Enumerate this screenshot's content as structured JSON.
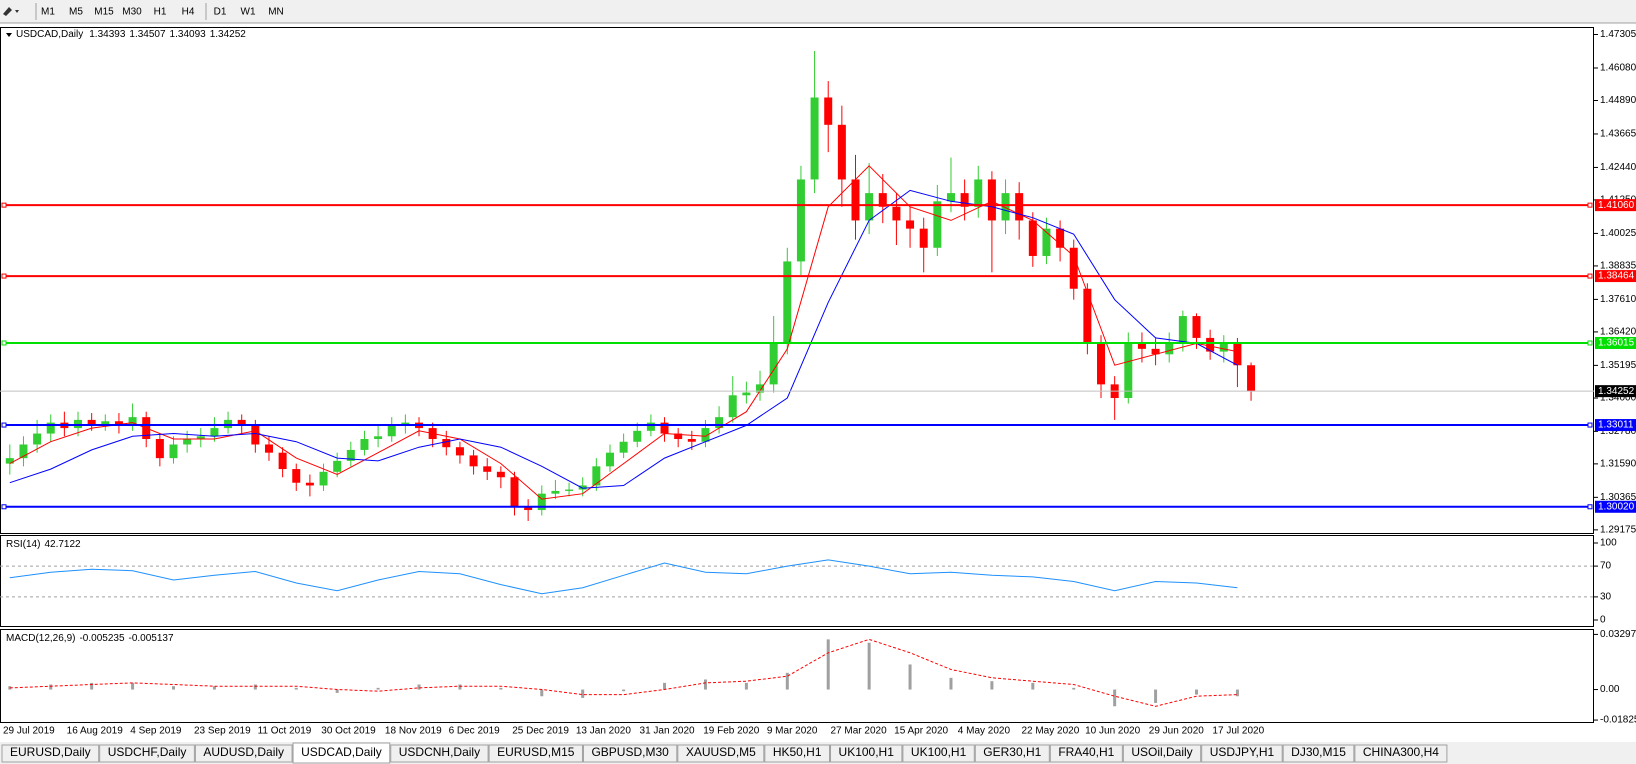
{
  "toolbar": {
    "timeframes": [
      "M1",
      "M5",
      "M15",
      "M30",
      "H1",
      "H4",
      "D1",
      "W1",
      "MN"
    ]
  },
  "chart_data": [
    {
      "type": "candlestick",
      "title": "USDCAD,Daily",
      "ohlc": [
        1.34393,
        1.34507,
        1.34093,
        1.34252
      ],
      "date_labels": [
        "29 Jul 2019",
        "16 Aug 2019",
        "4 Sep 2019",
        "23 Sep 2019",
        "11 Oct 2019",
        "30 Oct 2019",
        "18 Nov 2019",
        "6 Dec 2019",
        "25 Dec 2019",
        "13 Jan 2020",
        "31 Jan 2020",
        "19 Feb 2020",
        "9 Mar 2020",
        "27 Mar 2020",
        "15 Apr 2020",
        "4 May 2020",
        "22 May 2020",
        "10 Jun 2020",
        "29 Jun 2020",
        "17 Jul 2020"
      ],
      "open": [
        1.316,
        1.318,
        1.323,
        1.327,
        1.331,
        1.329,
        1.332,
        1.3305,
        1.3315,
        1.33,
        1.333,
        1.325,
        1.318,
        1.323,
        1.325,
        1.326,
        1.329,
        1.332,
        1.33,
        1.323,
        1.32,
        1.314,
        1.309,
        1.308,
        1.313,
        1.317,
        1.321,
        1.325,
        1.326,
        1.33,
        1.331,
        1.329,
        1.325,
        1.322,
        1.319,
        1.315,
        1.313,
        1.311,
        1.3,
        1.299,
        1.305,
        1.306,
        1.3065,
        1.308,
        1.315,
        1.32,
        1.324,
        1.328,
        1.331,
        1.327,
        1.325,
        1.324,
        1.329,
        1.333,
        1.341,
        1.342,
        1.345,
        1.36,
        1.39,
        1.42,
        1.45,
        1.44,
        1.42,
        1.405,
        1.415,
        1.41,
        1.405,
        1.402,
        1.395,
        1.412,
        1.415,
        1.41,
        1.42,
        1.405,
        1.415,
        1.405,
        1.392,
        1.402,
        1.395,
        1.38,
        1.36,
        1.345,
        1.34,
        1.36,
        1.358,
        1.356,
        1.36,
        1.37,
        1.362,
        1.357,
        1.36,
        1.352
      ],
      "high": [
        1.323,
        1.326,
        1.332,
        1.334,
        1.335,
        1.335,
        1.3345,
        1.334,
        1.3345,
        1.338,
        1.335,
        1.327,
        1.326,
        1.328,
        1.329,
        1.333,
        1.335,
        1.334,
        1.332,
        1.326,
        1.322,
        1.316,
        1.312,
        1.316,
        1.32,
        1.324,
        1.328,
        1.33,
        1.333,
        1.334,
        1.333,
        1.331,
        1.328,
        1.324,
        1.321,
        1.318,
        1.315,
        1.313,
        1.303,
        1.308,
        1.31,
        1.309,
        1.311,
        1.318,
        1.323,
        1.327,
        1.331,
        1.334,
        1.333,
        1.329,
        1.328,
        1.332,
        1.337,
        1.348,
        1.346,
        1.35,
        1.37,
        1.395,
        1.425,
        1.467,
        1.456,
        1.447,
        1.429,
        1.426,
        1.422,
        1.415,
        1.41,
        1.406,
        1.418,
        1.428,
        1.42,
        1.425,
        1.423,
        1.42,
        1.419,
        1.408,
        1.406,
        1.405,
        1.398,
        1.382,
        1.363,
        1.348,
        1.364,
        1.364,
        1.362,
        1.364,
        1.372,
        1.371,
        1.365,
        1.363,
        1.362,
        1.353
      ],
      "low": [
        1.312,
        1.315,
        1.32,
        1.324,
        1.326,
        1.326,
        1.328,
        1.328,
        1.327,
        1.328,
        1.322,
        1.315,
        1.316,
        1.32,
        1.322,
        1.324,
        1.327,
        1.327,
        1.32,
        1.317,
        1.311,
        1.306,
        1.304,
        1.306,
        1.311,
        1.315,
        1.319,
        1.322,
        1.324,
        1.327,
        1.326,
        1.322,
        1.319,
        1.316,
        1.312,
        1.31,
        1.307,
        1.297,
        1.295,
        1.297,
        1.303,
        1.304,
        1.304,
        1.306,
        1.313,
        1.318,
        1.322,
        1.326,
        1.324,
        1.322,
        1.321,
        1.322,
        1.327,
        1.331,
        1.338,
        1.339,
        1.342,
        1.356,
        1.385,
        1.415,
        1.43,
        1.41,
        1.398,
        1.4,
        1.404,
        1.396,
        1.395,
        1.386,
        1.392,
        1.408,
        1.405,
        1.406,
        1.386,
        1.4,
        1.398,
        1.388,
        1.389,
        1.39,
        1.376,
        1.356,
        1.34,
        1.332,
        1.338,
        1.353,
        1.352,
        1.353,
        1.357,
        1.358,
        1.354,
        1.353,
        1.344,
        1.339
      ],
      "close": [
        1.318,
        1.323,
        1.327,
        1.331,
        1.329,
        1.332,
        1.3305,
        1.3315,
        1.33,
        1.333,
        1.325,
        1.318,
        1.323,
        1.325,
        1.326,
        1.329,
        1.332,
        1.33,
        1.323,
        1.32,
        1.314,
        1.309,
        1.308,
        1.313,
        1.317,
        1.321,
        1.325,
        1.326,
        1.33,
        1.331,
        1.329,
        1.325,
        1.322,
        1.319,
        1.315,
        1.313,
        1.311,
        1.3,
        1.299,
        1.305,
        1.306,
        1.3065,
        1.308,
        1.315,
        1.32,
        1.324,
        1.328,
        1.331,
        1.327,
        1.325,
        1.324,
        1.329,
        1.333,
        1.341,
        1.342,
        1.345,
        1.36,
        1.39,
        1.42,
        1.45,
        1.44,
        1.42,
        1.405,
        1.415,
        1.41,
        1.405,
        1.402,
        1.395,
        1.412,
        1.415,
        1.41,
        1.42,
        1.405,
        1.415,
        1.405,
        1.392,
        1.402,
        1.395,
        1.38,
        1.36,
        1.345,
        1.34,
        1.36,
        1.358,
        1.356,
        1.36,
        1.37,
        1.362,
        1.357,
        1.36,
        1.352,
        1.34252
      ],
      "up_color": "#32cd32",
      "down_color": "#ff0000",
      "ylim": [
        1.2906,
        1.4758
      ],
      "yticks": [
        1.47305,
        {
          "value": 1.4608,
          "label": "1.46080"
        },
        {
          "value": 1.4489,
          "label": "1.44890"
        },
        1.43665,
        {
          "value": 1.4244,
          "label": "1.42440"
        },
        {
          "value": 1.4125,
          "label": "1.41250"
        },
        1.40025,
        1.38835,
        {
          "value": 1.3761,
          "label": "1.37610"
        },
        {
          "value": 1.3642,
          "label": "1.36420"
        },
        1.35195,
        {
          "value": 1.34,
          "label": "1.34000"
        },
        {
          "value": 1.3278,
          "label": "1.32780"
        },
        {
          "value": 1.3159,
          "label": "1.31590"
        },
        1.30365,
        1.29175
      ],
      "moving_averages": [
        {
          "color": "#ff0000",
          "x": [
            0,
            3,
            6,
            9,
            12,
            15,
            18,
            21,
            24,
            27,
            30,
            33,
            36,
            39,
            42,
            45,
            48,
            51,
            54,
            57,
            60,
            63,
            66,
            69,
            72,
            75,
            78,
            81,
            84,
            87,
            90
          ],
          "values": [
            1.316,
            1.324,
            1.329,
            1.331,
            1.325,
            1.325,
            1.328,
            1.318,
            1.312,
            1.32,
            1.328,
            1.325,
            1.316,
            1.303,
            1.305,
            1.316,
            1.327,
            1.326,
            1.335,
            1.358,
            1.41,
            1.425,
            1.41,
            1.405,
            1.412,
            1.405,
            1.392,
            1.352,
            1.356,
            1.36,
            1.357
          ]
        },
        {
          "color": "#0000ff",
          "x": [
            0,
            3,
            6,
            9,
            12,
            15,
            18,
            21,
            24,
            27,
            30,
            33,
            36,
            39,
            42,
            45,
            48,
            51,
            54,
            57,
            60,
            63,
            66,
            69,
            72,
            75,
            78,
            81,
            84,
            87,
            90
          ],
          "values": [
            1.309,
            1.314,
            1.321,
            1.326,
            1.327,
            1.326,
            1.327,
            1.324,
            1.318,
            1.317,
            1.322,
            1.325,
            1.322,
            1.315,
            1.307,
            1.308,
            1.318,
            1.324,
            1.33,
            1.34,
            1.375,
            1.405,
            1.416,
            1.412,
            1.41,
            1.406,
            1.4,
            1.376,
            1.362,
            1.36,
            1.352
          ]
        }
      ],
      "levels": [
        {
          "price": {
            "value": 1.4106,
            "label": "1.41060"
          },
          "color": "#ff0000"
        },
        {
          "price": 1.38464,
          "color": "#ff0000"
        },
        {
          "price": 1.36015,
          "color": "#00e000"
        },
        {
          "price": 1.33011,
          "color": "#0000ff"
        },
        {
          "price": {
            "value": 1.3002,
            "label": "1.30020"
          },
          "color": "#0000ff"
        }
      ]
    },
    {
      "type": "line",
      "name": "RSI(14)",
      "current": 42.7122,
      "color": "#1e90ff",
      "x": [
        0,
        3,
        6,
        9,
        12,
        15,
        18,
        21,
        24,
        27,
        30,
        33,
        36,
        39,
        42,
        45,
        48,
        51,
        54,
        57,
        60,
        63,
        66,
        69,
        72,
        75,
        78,
        81,
        84,
        87,
        90
      ],
      "values": [
        55,
        62,
        66,
        64,
        52,
        58,
        63,
        48,
        38,
        52,
        63,
        60,
        46,
        34,
        42,
        58,
        74,
        62,
        60,
        70,
        78,
        70,
        60,
        62,
        58,
        56,
        50,
        38,
        50,
        48,
        42
      ],
      "ylim": [
        -7.8,
        110.4
      ],
      "yticks": [
        100,
        70,
        30,
        0
      ],
      "levels": [
        70,
        30
      ]
    },
    {
      "type": "macd",
      "name": "MACD(12,26,9)",
      "current": [
        -0.005235,
        -0.005137
      ],
      "x": [
        0,
        3,
        6,
        9,
        12,
        15,
        18,
        21,
        24,
        27,
        30,
        33,
        36,
        39,
        42,
        45,
        48,
        51,
        54,
        57,
        60,
        63,
        66,
        69,
        72,
        75,
        78,
        81,
        84,
        87,
        90
      ],
      "main": [
        0.002,
        0.003,
        0.004,
        0.004,
        0.002,
        0.002,
        0.003,
        0.001,
        -0.002,
        0.001,
        0.003,
        0.003,
        0.001,
        -0.004,
        -0.005,
        -0.001,
        0.004,
        0.006,
        0.004,
        0.01,
        0.03,
        0.028,
        0.015,
        0.007,
        0.005,
        0.004,
        0.001,
        -0.01,
        -0.008,
        -0.003,
        -0.004
      ],
      "signal": [
        0.001,
        0.002,
        0.003,
        0.004,
        0.003,
        0.002,
        0.002,
        0.002,
        0,
        -0.001,
        0.001,
        0.002,
        0.002,
        0,
        -0.003,
        -0.003,
        0,
        0.004,
        0.005,
        0.008,
        0.022,
        0.03,
        0.022,
        0.012,
        0.007,
        0.005,
        0.003,
        -0.004,
        -0.01,
        -0.004,
        -0.003
      ],
      "main_color": "#a0a0a0",
      "signal_color": "#ff0000",
      "ylim": [
        -0.01941,
        0.03621
      ],
      "yticks": [
        0.032972,
        {
          "value": 0,
          "label": "0.00"
        },
        -0.01825
      ]
    }
  ],
  "tabs": {
    "items": [
      "EURUSD,Daily",
      "USDCHF,Daily",
      "AUDUSD,Daily",
      "USDCAD,Daily",
      "USDCNH,Daily",
      "EURUSD,M15",
      "GBPUSD,M30",
      "XAUUSD,M5",
      "HK50,H1",
      "UK100,H1",
      "UK100,H1",
      "GER30,H1",
      "FRA40,H1",
      "USOil,Daily",
      "USDJPY,H1",
      "DJ30,M15",
      "CHINA300,H4"
    ],
    "active": 3
  }
}
